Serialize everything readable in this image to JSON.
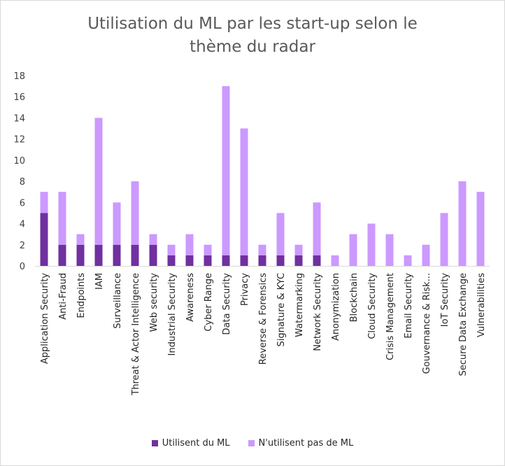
{
  "chart_data": {
    "type": "bar",
    "stacked": true,
    "title": "Utilisation du ML par les start-up selon le thème du radar",
    "title_lines": [
      "Utilisation du ML par les start-up selon le",
      "thème du radar"
    ],
    "xlabel": "",
    "ylabel": "",
    "ylim": [
      0,
      18
    ],
    "yticks": [
      0,
      2,
      4,
      6,
      8,
      10,
      12,
      14,
      16,
      18
    ],
    "grid": false,
    "legend_position": "bottom",
    "categories": [
      "Application Security",
      "Anti-Fraud",
      "Endpoints",
      "IAM",
      "Surveillance",
      "Threat & Actor Intelligence",
      "Web security",
      "Industrial Security",
      "Awareness",
      "Cyber Range",
      "Data Security",
      "Privacy",
      "Reverse & Forensics",
      "Signature & KYC",
      "Watermarking",
      "Network Security",
      "Anonymization",
      "Blockchain",
      "Cloud Security",
      "Crisis Management",
      "Email Security",
      "Gouvernance & Risk...",
      "IoT Security",
      "Secure Data Exchange",
      "Vulnerabilities"
    ],
    "series": [
      {
        "name": "Utilisent du ML",
        "color": "#7030a0",
        "values": [
          5,
          2,
          2,
          2,
          2,
          2,
          2,
          1,
          1,
          1,
          1,
          1,
          1,
          1,
          1,
          1,
          0,
          0,
          0,
          0,
          0,
          0,
          0,
          0,
          0
        ]
      },
      {
        "name": "N'utilisent pas de ML",
        "color": "#cc99ff",
        "values": [
          2,
          5,
          1,
          12,
          4,
          6,
          1,
          1,
          2,
          1,
          16,
          12,
          1,
          4,
          1,
          5,
          1,
          3,
          4,
          3,
          1,
          2,
          5,
          8,
          7
        ]
      }
    ]
  }
}
